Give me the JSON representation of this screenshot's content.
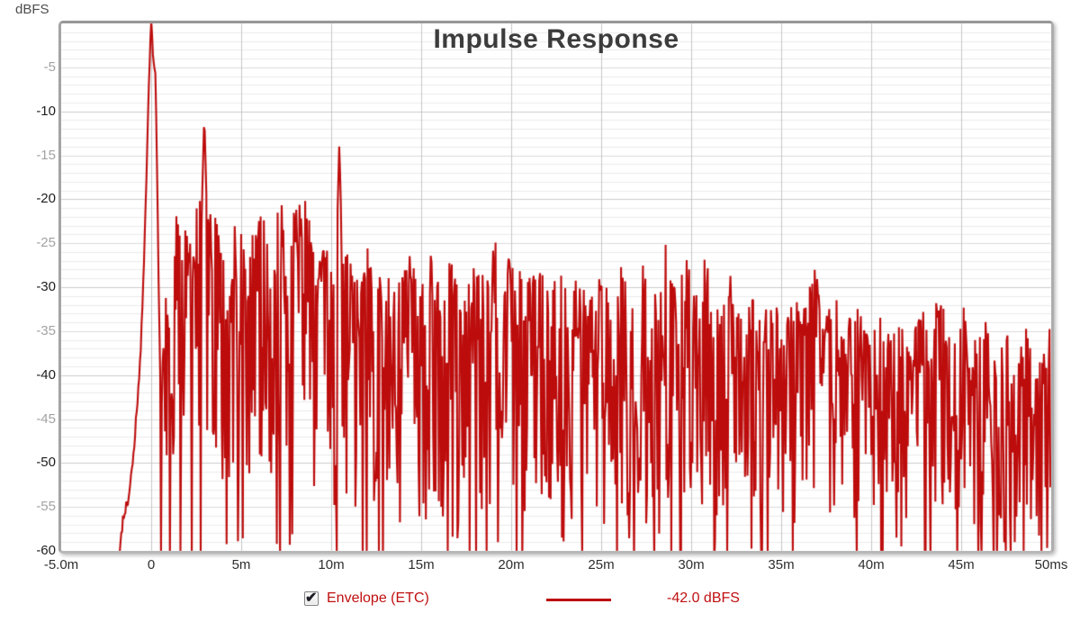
{
  "window": {
    "background": "#ffffff"
  },
  "chart_data": {
    "type": "line",
    "title": "Impulse Response",
    "ylabel": "dBFS",
    "xlim_ms": [
      -5,
      50
    ],
    "ylim_db": [
      -60,
      0
    ],
    "grid": {
      "h_minor_step_db": 1,
      "h_emph_step_db": 5,
      "h_major_step_db": 10,
      "v_step_ms": 5,
      "minor_vertical": false
    },
    "x_ticks": [
      {
        "t": -5,
        "label": "-5.0m"
      },
      {
        "t": 0,
        "label": "0"
      },
      {
        "t": 5,
        "label": "5m"
      },
      {
        "t": 10,
        "label": "10m"
      },
      {
        "t": 15,
        "label": "15m"
      },
      {
        "t": 20,
        "label": "20m"
      },
      {
        "t": 25,
        "label": "25m"
      },
      {
        "t": 30,
        "label": "30m"
      },
      {
        "t": 35,
        "label": "35m"
      },
      {
        "t": 40,
        "label": "40m"
      },
      {
        "t": 45,
        "label": "45m"
      },
      {
        "t": 50,
        "label": "50ms"
      }
    ],
    "y_ticks": [
      {
        "v": -5,
        "label": "-5",
        "major": false
      },
      {
        "v": -10,
        "label": "-10",
        "major": true
      },
      {
        "v": -15,
        "label": "-15",
        "major": false
      },
      {
        "v": -20,
        "label": "-20",
        "major": true
      },
      {
        "v": -25,
        "label": "-25",
        "major": false
      },
      {
        "v": -30,
        "label": "-30",
        "major": true
      },
      {
        "v": -35,
        "label": "-35",
        "major": false
      },
      {
        "v": -40,
        "label": "-40",
        "major": true
      },
      {
        "v": -45,
        "label": "-45",
        "major": false
      },
      {
        "v": -50,
        "label": "-50",
        "major": true
      },
      {
        "v": -55,
        "label": "-55",
        "major": false
      },
      {
        "v": -60,
        "label": "-60",
        "major": true
      }
    ],
    "series": [
      {
        "name": "Envelope (ETC)",
        "value_label": "-42.0 dBFS",
        "color": "#bd0c0c",
        "visible": true,
        "seed": 73,
        "sample_step_ms": 0.045,
        "line_width": 2.1,
        "rise_points": [
          [
            -1.75,
            -60.5
          ],
          [
            -1.55,
            -56
          ],
          [
            -1.4,
            -55
          ],
          [
            -1.25,
            -54
          ],
          [
            -1.1,
            -51
          ],
          [
            -0.95,
            -48
          ],
          [
            -0.8,
            -44
          ],
          [
            -0.65,
            -40
          ],
          [
            -0.5,
            -33
          ],
          [
            -0.38,
            -26
          ],
          [
            -0.28,
            -19
          ],
          [
            -0.18,
            -11
          ],
          [
            -0.1,
            -5
          ],
          [
            -0.04,
            -1.5
          ],
          [
            0,
            0
          ]
        ],
        "fall_points": [
          [
            0,
            0
          ],
          [
            0.06,
            -1.5
          ],
          [
            0.12,
            -4.5
          ],
          [
            0.18,
            -5.5
          ],
          [
            0.24,
            -6.5
          ],
          [
            0.3,
            -12
          ],
          [
            0.36,
            -22
          ],
          [
            0.42,
            -31
          ],
          [
            0.5,
            -40
          ]
        ],
        "upper_envelope": [
          [
            0.5,
            -40
          ],
          [
            0.7,
            -33
          ],
          [
            0.9,
            -27
          ],
          [
            1.2,
            -23
          ],
          [
            1.5,
            -20
          ],
          [
            1.8,
            -22
          ],
          [
            2.1,
            -20
          ],
          [
            2.4,
            -22
          ],
          [
            2.7,
            -21
          ],
          [
            3.0,
            -18
          ],
          [
            3.4,
            -22
          ],
          [
            3.8,
            -24
          ],
          [
            4.2,
            -23
          ],
          [
            4.6,
            -25
          ],
          [
            5.0,
            -24
          ],
          [
            5.5,
            -23
          ],
          [
            6.0,
            -22
          ],
          [
            6.5,
            -23
          ],
          [
            7.0,
            -21
          ],
          [
            7.5,
            -20
          ],
          [
            8.0,
            -20
          ],
          [
            8.5,
            -21
          ],
          [
            9.0,
            -23
          ],
          [
            9.5,
            -26
          ],
          [
            10.0,
            -27
          ],
          [
            11.0,
            -26
          ],
          [
            11.5,
            -28
          ],
          [
            12.0,
            -27
          ],
          [
            13.0,
            -28
          ],
          [
            14.0,
            -27
          ],
          [
            15.0,
            -28
          ],
          [
            16.0,
            -29
          ],
          [
            17.0,
            -29
          ],
          [
            18.0,
            -28
          ],
          [
            19.0,
            -27
          ],
          [
            19.6,
            -25
          ],
          [
            20.2,
            -27
          ],
          [
            21.0,
            -28
          ],
          [
            22.0,
            -29
          ],
          [
            23.0,
            -28
          ],
          [
            24.0,
            -30
          ],
          [
            25.0,
            -30
          ],
          [
            26.0,
            -29
          ],
          [
            27.0,
            -30
          ],
          [
            28.0,
            -29
          ],
          [
            28.6,
            -27
          ],
          [
            29.3,
            -29
          ],
          [
            30.0,
            -28
          ],
          [
            30.6,
            -27
          ],
          [
            31.2,
            -29
          ],
          [
            32.0,
            -30
          ],
          [
            33.0,
            -31
          ],
          [
            34.0,
            -31
          ],
          [
            35.0,
            -32
          ],
          [
            36.0,
            -31
          ],
          [
            36.7,
            -30
          ],
          [
            37.5,
            -32
          ],
          [
            38.0,
            -33
          ],
          [
            39.0,
            -33
          ],
          [
            40.0,
            -34
          ],
          [
            41.0,
            -34
          ],
          [
            42.0,
            -35
          ],
          [
            43.0,
            -34
          ],
          [
            43.7,
            -32
          ],
          [
            44.5,
            -35
          ],
          [
            45.0,
            -34
          ],
          [
            46.0,
            -35
          ],
          [
            47.0,
            -36
          ],
          [
            48.0,
            -36
          ],
          [
            49.0,
            -37
          ],
          [
            50.0,
            -37
          ]
        ],
        "spike_peaks": [
          [
            2.95,
            -10.2
          ],
          [
            10.45,
            -13.6
          ]
        ],
        "null_floor_db": -58,
        "null_probability": 0.055,
        "spike_depth_db": 29
      }
    ]
  },
  "legend": {
    "checkbox_checked": true,
    "checkmark_glyph": "✔"
  },
  "colors": {
    "grid_minor": "#ebebeb",
    "grid_5db": "#dcdcdc",
    "grid_10db": "#cdcdcd",
    "grid_vertical": "#c6c6c6",
    "tick_major_text": "#1d1d1d",
    "tick_minor_text": "#a2a2a2",
    "x_tick_text": "#2e2e2e",
    "title_text": "#3c3c3c",
    "legend_text": "#c01010"
  }
}
